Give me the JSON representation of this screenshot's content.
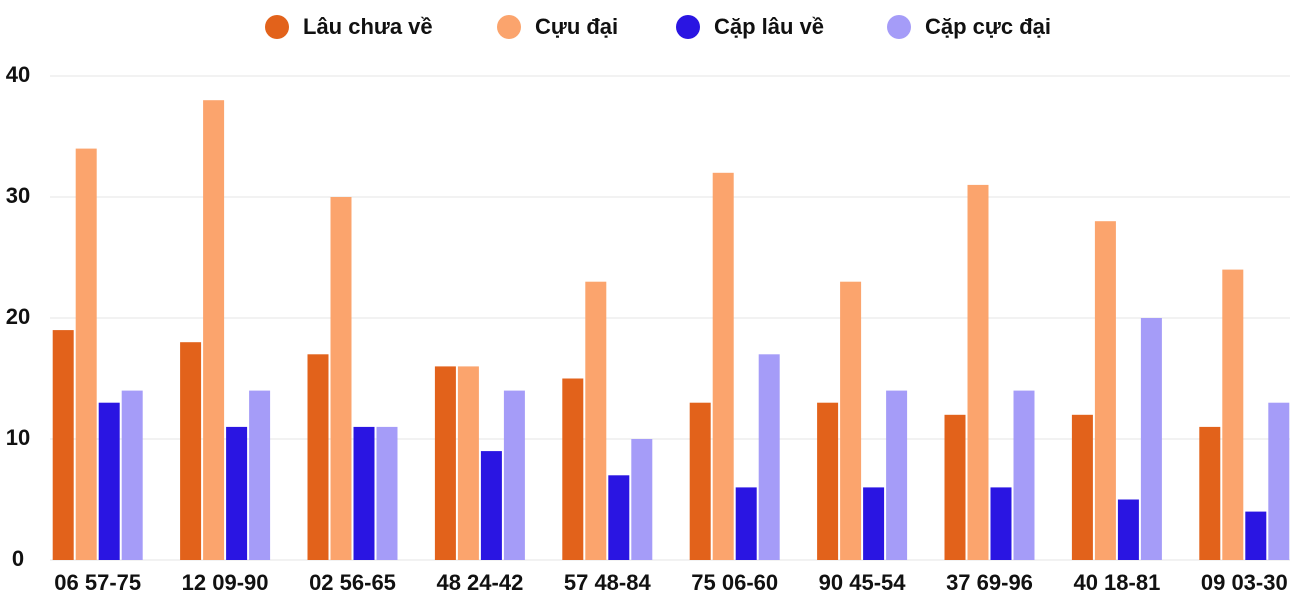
{
  "chart_data": {
    "type": "bar",
    "categories": [
      "06 57-75",
      "12 09-90",
      "02 56-65",
      "48 24-42",
      "57 48-84",
      "75 06-60",
      "90 45-54",
      "37 69-96",
      "40 18-81",
      "09 03-30"
    ],
    "series": [
      {
        "name": "Lâu chưa về",
        "color": "#e2621b",
        "values": [
          19,
          18,
          17,
          16,
          15,
          13,
          13,
          12,
          12,
          11
        ]
      },
      {
        "name": "Cựu đại",
        "color": "#fba46d",
        "values": [
          34,
          38,
          30,
          16,
          23,
          32,
          23,
          31,
          28,
          24
        ]
      },
      {
        "name": "Cặp lâu về",
        "color": "#2a15e2",
        "values": [
          13,
          11,
          11,
          9,
          7,
          6,
          6,
          6,
          5,
          4
        ]
      },
      {
        "name": "Cặp cực đại",
        "color": "#a59cf8",
        "values": [
          14,
          14,
          11,
          14,
          10,
          17,
          14,
          14,
          20,
          13
        ]
      }
    ],
    "ylim": [
      0,
      40
    ],
    "yticks": [
      0,
      10,
      20,
      30,
      40
    ],
    "grid": true,
    "legend": "top"
  }
}
